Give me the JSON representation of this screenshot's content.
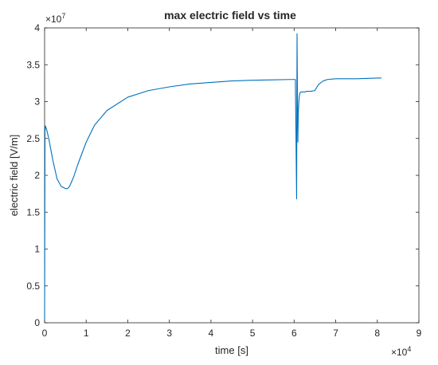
{
  "chart_data": {
    "type": "line",
    "title": "max electric field vs time",
    "xlabel": "time [s]",
    "ylabel": "electric field [V/m]",
    "x_multiplier_label": "×10",
    "x_multiplier_exp": "4",
    "y_multiplier_label": "×10",
    "y_multiplier_exp": "7",
    "xlim": [
      0,
      9
    ],
    "ylim": [
      0,
      4
    ],
    "x_ticks": [
      0,
      1,
      2,
      3,
      4,
      5,
      6,
      7,
      8,
      9
    ],
    "x_tick_labels": [
      "0",
      "1",
      "2",
      "3",
      "4",
      "5",
      "6",
      "7",
      "8",
      "9"
    ],
    "y_ticks": [
      0,
      0.5,
      1,
      1.5,
      2,
      2.5,
      3,
      3.5,
      4
    ],
    "y_tick_labels": [
      "0",
      "0.5",
      "1",
      "1.5",
      "2",
      "2.5",
      "3",
      "3.5",
      "4"
    ],
    "grid": false,
    "line_color": "#0072BD",
    "series": [
      {
        "x": [
          0,
          0.01,
          0.02,
          0.05,
          0.1,
          0.2,
          0.3,
          0.4,
          0.5,
          0.55,
          0.6,
          0.7,
          0.8,
          0.9,
          1.0,
          1.2,
          1.5,
          2.0,
          2.5,
          3.0,
          3.5,
          4.0,
          4.5,
          5.0,
          5.5,
          5.9,
          6.03,
          6.06,
          6.07,
          6.08,
          6.09,
          6.1,
          6.12,
          6.14,
          6.16,
          6.2,
          6.25,
          6.3,
          6.4,
          6.5,
          6.55,
          6.6,
          6.65,
          6.7,
          6.75,
          6.8,
          7.0,
          7.5,
          8.0,
          8.1
        ],
        "y": [
          0.05,
          2.6,
          2.67,
          2.62,
          2.5,
          2.2,
          1.95,
          1.85,
          1.82,
          1.82,
          1.85,
          1.98,
          2.15,
          2.3,
          2.45,
          2.68,
          2.88,
          3.06,
          3.15,
          3.2,
          3.24,
          3.26,
          3.28,
          3.29,
          3.295,
          3.3,
          3.3,
          1.68,
          3.92,
          3.1,
          2.45,
          2.85,
          3.05,
          3.12,
          3.13,
          3.13,
          3.13,
          3.14,
          3.14,
          3.15,
          3.2,
          3.24,
          3.26,
          3.28,
          3.29,
          3.3,
          3.31,
          3.31,
          3.32,
          3.32
        ]
      }
    ]
  }
}
